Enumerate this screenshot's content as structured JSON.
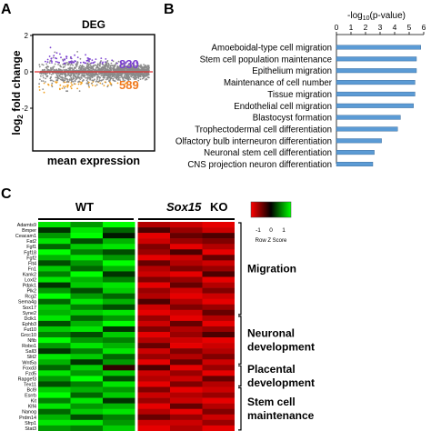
{
  "chart_data": [
    {
      "panel": "A",
      "type": "scatter",
      "title": "DEG",
      "xlabel": "mean expression",
      "ylabel": "log2 fold change",
      "counts": {
        "up": "830",
        "down": "589"
      },
      "colors": {
        "up": "#7a3fd0",
        "down": "#f0a020",
        "ns": "#8a8a8a",
        "zero": "#e03030"
      },
      "ylim": [
        -2,
        2
      ]
    },
    {
      "panel": "B",
      "type": "bar",
      "xlabel": "-log10(p-value)",
      "xlim": [
        0,
        6
      ],
      "ticks": [
        "0",
        "1",
        "2",
        "3",
        "4",
        "5",
        "6"
      ],
      "color": "#5b9bd5",
      "categories": [
        "Amoeboidal-type cell migration",
        "Stem cell population maintenance",
        "Epithelium migration",
        "Maintenance of cell number",
        "Tissue migration",
        "Endothelial cell migration",
        "Blastocyst formation",
        "Trophectodermal cell differentiation",
        "Olfactory bulb interneuron differentiation",
        "Neuronal stem cell differentiation",
        "CNS projection neuron differentiation"
      ],
      "values": [
        5.8,
        5.5,
        5.5,
        5.4,
        5.4,
        5.3,
        4.4,
        4.2,
        3.1,
        2.6,
        2.5
      ]
    },
    {
      "panel": "C",
      "type": "heatmap",
      "group_labels": [
        "WT",
        "Sox15",
        "KO"
      ],
      "legend": {
        "title": "Row Z Score",
        "ticks": [
          "-1",
          "0",
          "1"
        ]
      },
      "genes": [
        "Adamts9",
        "Bmper",
        "Ceacam1",
        "Fat2",
        "Fgf1",
        "Fgf18",
        "Fgf2",
        "Flt4",
        "Fn1",
        "Kank2",
        "Loxl2",
        "Pdpk1",
        "Plk2",
        "Rcg2",
        "Sema4g",
        "Sox17",
        "Syne2",
        "Dclk1",
        "Ephb3",
        "Fut10",
        "Grcc10",
        "Nfib",
        "Robo1",
        "Sall3",
        "Slit2",
        "Wnt5a",
        "Foxd3",
        "Fzd5",
        "Rapgef3",
        "Tex11",
        "Bcl9",
        "Esrrb",
        "Kit",
        "Klf4",
        "Nanog",
        "Prdm14",
        "Sfrp1",
        "Stat3"
      ],
      "modules": [
        {
          "label": "Migration",
          "start": 0,
          "end": 16
        },
        {
          "label": "Neuronal development",
          "start": 17,
          "end": 25
        },
        {
          "label": "Placental development",
          "start": 26,
          "end": 29
        },
        {
          "label": "Stem cell maintenance",
          "start": 30,
          "end": 37
        }
      ],
      "values": [
        [
          0.9,
          0.6,
          1.0,
          -0.7,
          -0.8,
          -0.9
        ],
        [
          0.2,
          0.9,
          0.4,
          -0.3,
          -0.6,
          -0.8
        ],
        [
          0.6,
          1.0,
          0.1,
          -0.9,
          -0.4,
          -0.3
        ],
        [
          0.9,
          0.3,
          0.7,
          -0.8,
          -0.6,
          -0.5
        ],
        [
          0.4,
          0.8,
          0.9,
          -0.5,
          -0.9,
          -0.7
        ],
        [
          1.0,
          0.5,
          0.3,
          -0.6,
          -0.3,
          -0.9
        ],
        [
          0.7,
          0.9,
          0.6,
          -0.9,
          -0.8,
          -0.4
        ],
        [
          0.3,
          0.6,
          1.0,
          -0.4,
          -0.7,
          -0.8
        ],
        [
          0.8,
          0.4,
          0.7,
          -0.7,
          -0.5,
          -0.6
        ],
        [
          0.5,
          1.0,
          0.2,
          -0.8,
          -0.9,
          -0.3
        ],
        [
          0.9,
          0.7,
          0.5,
          -0.5,
          -0.6,
          -0.9
        ],
        [
          0.2,
          0.8,
          0.9,
          -0.9,
          -0.4,
          -0.7
        ],
        [
          0.6,
          0.3,
          0.8,
          -0.6,
          -0.8,
          -0.5
        ],
        [
          1.0,
          0.6,
          0.4,
          -0.7,
          -0.9,
          -0.8
        ],
        [
          0.4,
          0.9,
          0.7,
          -0.3,
          -0.7,
          -0.9
        ],
        [
          0.8,
          0.5,
          0.3,
          -0.8,
          -0.5,
          -0.6
        ],
        [
          0.7,
          0.8,
          0.9,
          -0.9,
          -0.8,
          -0.4
        ],
        [
          0.9,
          0.4,
          0.6,
          -0.6,
          -0.9,
          -0.7
        ],
        [
          0.3,
          0.7,
          1.0,
          -0.8,
          -0.4,
          -0.9
        ],
        [
          0.8,
          0.9,
          0.2,
          -0.5,
          -0.7,
          -0.6
        ],
        [
          0.5,
          0.3,
          0.8,
          -0.9,
          -0.6,
          -0.3
        ],
        [
          1.0,
          0.6,
          0.5,
          -0.7,
          -0.8,
          -0.9
        ],
        [
          0.6,
          0.9,
          0.7,
          -0.4,
          -0.9,
          -0.8
        ],
        [
          0.2,
          0.5,
          0.9,
          -0.8,
          -0.5,
          -0.7
        ],
        [
          0.9,
          0.8,
          0.4,
          -0.6,
          -0.7,
          -0.5
        ],
        [
          0.7,
          0.2,
          0.6,
          -0.9,
          -0.4,
          -0.8
        ],
        [
          0.4,
          0.8,
          -0.2,
          -0.3,
          -0.9,
          -0.6
        ],
        [
          0.9,
          0.6,
          0.8,
          -0.8,
          -0.6,
          -0.9
        ],
        [
          0.6,
          1.0,
          0.3,
          -0.7,
          -0.8,
          -0.4
        ],
        [
          0.3,
          0.5,
          0.9,
          -0.9,
          -0.5,
          -0.7
        ],
        [
          0.8,
          0.7,
          0.6,
          -0.5,
          -0.9,
          -0.8
        ],
        [
          1.0,
          0.4,
          0.8,
          -0.8,
          -0.7,
          -0.6
        ],
        [
          0.5,
          0.9,
          0.2,
          -0.6,
          -0.8,
          -0.9
        ],
        [
          0.9,
          0.6,
          0.7,
          -0.9,
          -0.4,
          -0.7
        ],
        [
          0.4,
          0.8,
          0.9,
          -0.7,
          -0.9,
          -0.5
        ],
        [
          0.7,
          0.3,
          0.5,
          -0.4,
          -0.6,
          -0.8
        ],
        [
          0.9,
          0.9,
          0.6,
          -0.8,
          -0.8,
          -0.6
        ],
        [
          0.6,
          0.5,
          0.8,
          -0.9,
          -0.7,
          -0.9
        ]
      ]
    }
  ],
  "panels": {
    "a": "A",
    "b": "B",
    "c": "C"
  }
}
